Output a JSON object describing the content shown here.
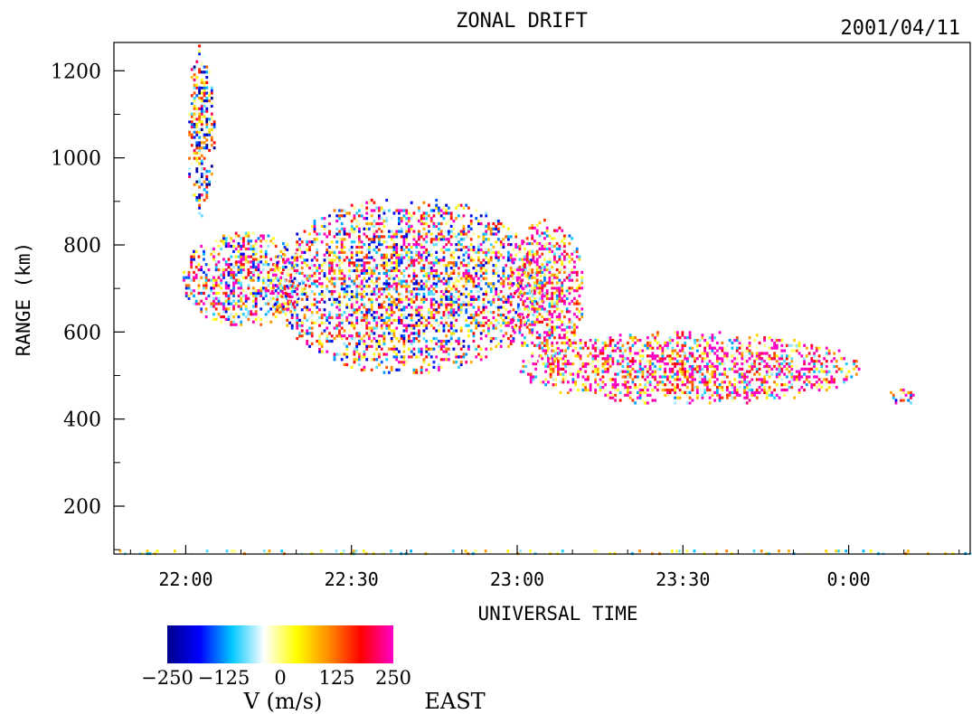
{
  "chart_data": {
    "type": "heatmap",
    "title": "ZONAL DRIFT",
    "date": "2001/04/11",
    "xlabel": "UNIVERSAL TIME",
    "ylabel": "RANGE (km)",
    "x_tick_labels": [
      "22:00",
      "22:30",
      "23:00",
      "23:30",
      "0:00"
    ],
    "x_ticks_minutes": [
      0,
      30,
      60,
      90,
      120
    ],
    "xlim_minutes_from_2200": [
      -13,
      142
    ],
    "ylim": [
      90,
      1265
    ],
    "y_ticks": [
      200,
      400,
      600,
      800,
      1000,
      1200
    ],
    "y_minor_ticks": [
      100,
      300,
      500,
      700,
      900,
      1100
    ],
    "colorbar": {
      "label": "V (m/s)",
      "direction_label": "EAST",
      "ticks": [
        -250,
        -125,
        0,
        125,
        250
      ],
      "tick_labels": [
        "−250",
        "−125",
        "0",
        "125",
        "250"
      ],
      "range": [
        -250,
        250
      ],
      "colors": [
        "#00008b",
        "#0000ff",
        "#00c8ff",
        "#ffffff",
        "#ffff00",
        "#ff8c00",
        "#ff0000",
        "#ff00c8"
      ]
    },
    "echo_regions": [
      {
        "name": "upper-echo",
        "t_start": 0,
        "t_end": 5,
        "r_low": 860,
        "r_high": 1260,
        "mean_v": -40
      },
      {
        "name": "main-echo-west",
        "t_start": -1,
        "t_end": 22,
        "r_low": 610,
        "r_high": 830,
        "mean_v": 60
      },
      {
        "name": "main-echo-core",
        "t_start": 15,
        "t_end": 65,
        "r_low": 500,
        "r_high": 910,
        "mean_v": 40
      },
      {
        "name": "main-echo-east",
        "t_start": 58,
        "t_end": 72,
        "r_low": 520,
        "r_high": 860,
        "mean_v": 120
      },
      {
        "name": "trailing-tail",
        "t_start": 60,
        "t_end": 122,
        "r_low": 430,
        "r_high": 600,
        "mean_v": 130
      },
      {
        "name": "late-patch",
        "t_start": 127,
        "t_end": 132,
        "r_low": 430,
        "r_high": 470,
        "mean_v": 50
      },
      {
        "name": "ground-band",
        "t_start": -13,
        "t_end": 142,
        "r_low": 90,
        "r_high": 100,
        "mean_v": 0
      }
    ]
  }
}
